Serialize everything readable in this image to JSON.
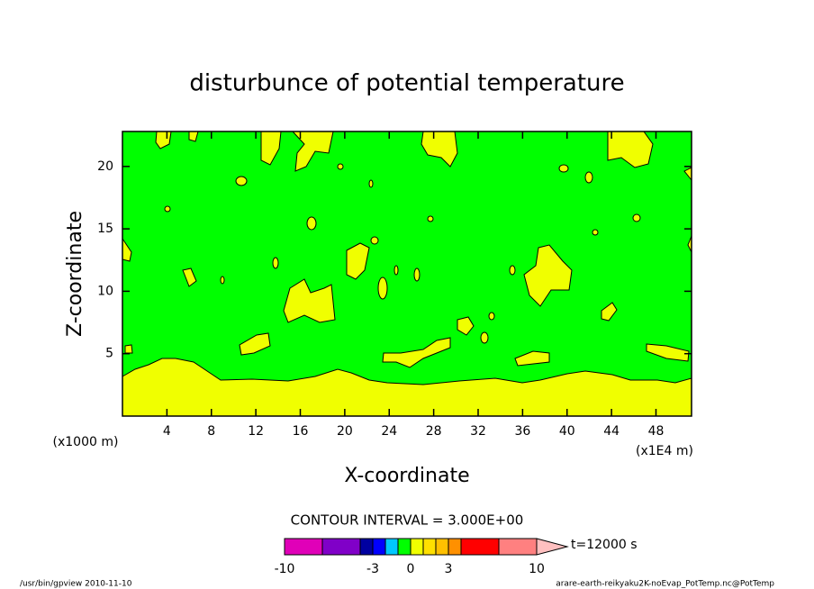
{
  "chart_data": {
    "type": "contour",
    "title": "disturbunce of potential temperature",
    "x_label": "X-coordinate",
    "y_label": "Z-coordinate",
    "x_unit_label": "(x1E4 m)",
    "y_unit_label": "(x1000 m)",
    "xlim": [
      0,
      51.2
    ],
    "ylim": [
      0,
      22.8
    ],
    "xticks": [
      4,
      8,
      12,
      16,
      20,
      24,
      28,
      32,
      36,
      40,
      44,
      48
    ],
    "yticks": [
      5,
      10,
      15,
      20
    ],
    "background_color": "#00ff00",
    "region_color": "#f0ff00",
    "contour_interval_label": "CONTOUR INTERVAL = 3.000E+00",
    "time_label": "t=12000 s",
    "colorbar": {
      "levels": [
        -10,
        -7,
        -4,
        -3,
        -2,
        -1,
        0,
        1,
        2,
        3,
        4,
        7,
        10
      ],
      "colors": [
        "#e000b8",
        "#8000c8",
        "#0000a0",
        "#0000ff",
        "#00c8ff",
        "#00ff00",
        "#f0ff00",
        "#ffe000",
        "#ffc000",
        "#ff9000",
        "#ff0000",
        "#ff8080"
      ],
      "extend_color": "#ffc0c0",
      "ticks": [
        -10,
        -3,
        0,
        3,
        10
      ]
    },
    "footer_left": "/usr/bin/gpview  2010-11-10",
    "footer_right": "arare-earth-reikyaku2K-noEvap_PotTemp.nc@PotTemp"
  }
}
